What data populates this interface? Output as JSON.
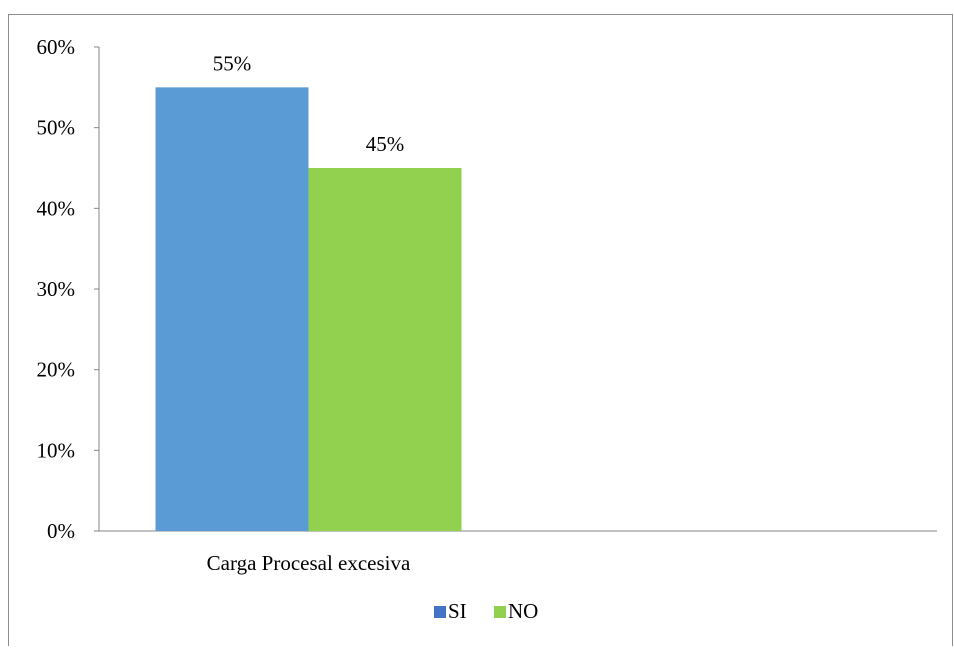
{
  "chart_data": {
    "type": "bar",
    "categories": [
      "Carga Procesal excesiva"
    ],
    "series": [
      {
        "name": "SI",
        "values": [
          55
        ],
        "color": "#5b9bd5",
        "legend_color": "#4472c4",
        "data_label": "55%"
      },
      {
        "name": "NO",
        "values": [
          45
        ],
        "color": "#92d050",
        "legend_color": "#92d050",
        "data_label": "45%"
      }
    ],
    "ylim": [
      0,
      60
    ],
    "y_ticks": [
      0,
      10,
      20,
      30,
      40,
      50,
      60
    ],
    "y_tick_labels": [
      "0%",
      "10%",
      "20%",
      "30%",
      "40%",
      "50%",
      "60%"
    ],
    "grid": false,
    "legend_position": "bottom",
    "title": "",
    "xlabel": "",
    "ylabel": ""
  }
}
